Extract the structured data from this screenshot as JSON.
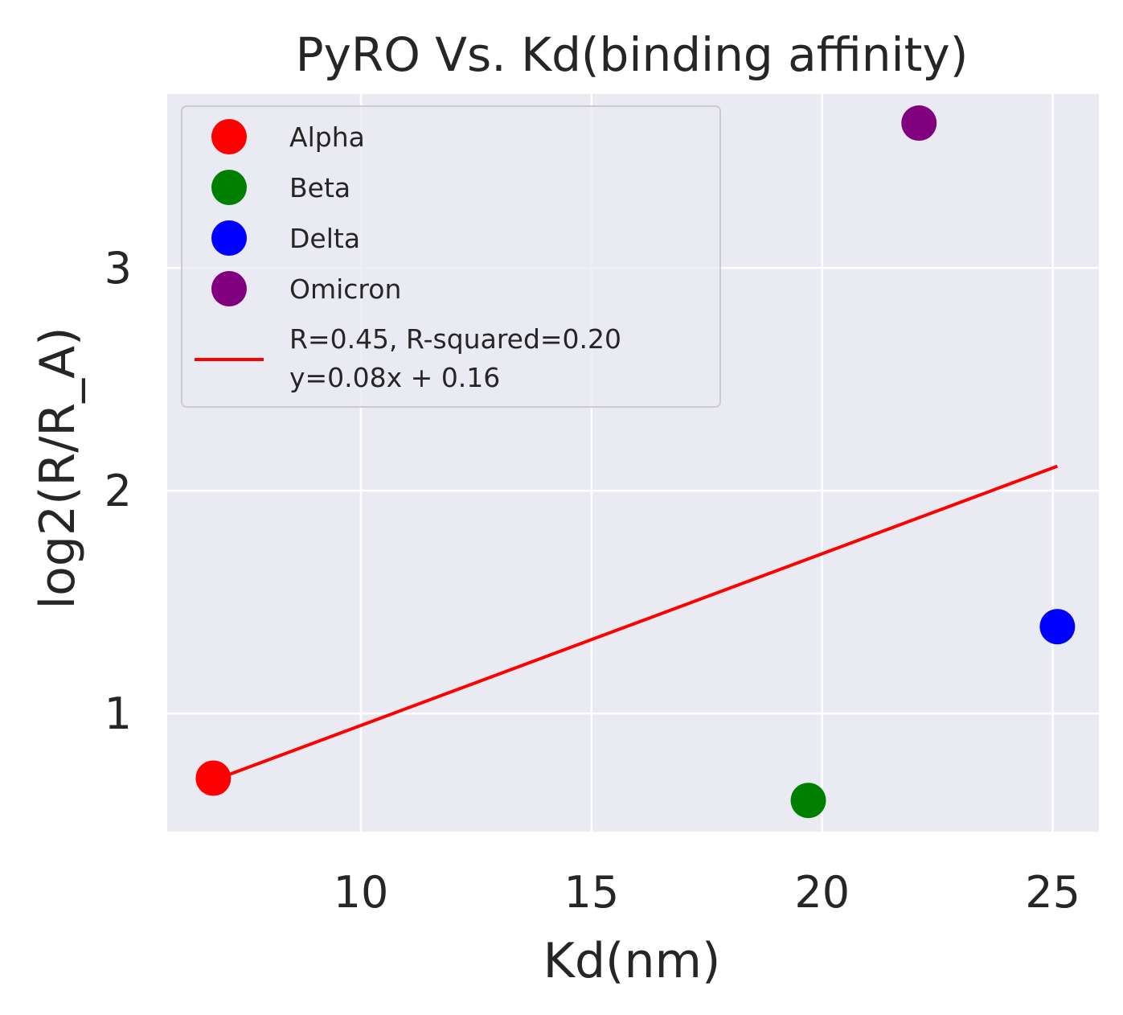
{
  "chart_data": {
    "type": "scatter",
    "title": "PyRO Vs. Kd(binding affinity)",
    "xlabel": "Kd(nm)",
    "ylabel": "log2(R/R_A)",
    "xlim": [
      5.8,
      26.0
    ],
    "ylim": [
      0.47,
      3.78
    ],
    "xticks": [
      10,
      15,
      20,
      25
    ],
    "yticks": [
      1,
      2,
      3
    ],
    "xtick_labels": [
      "10",
      "15",
      "20",
      "25"
    ],
    "ytick_labels": [
      "1",
      "2",
      "3"
    ],
    "grid": true,
    "background": "#eaeaf2",
    "legend_position": "top-left",
    "series": [
      {
        "name": "Alpha",
        "color": "#ff0000",
        "x": [
          6.8
        ],
        "y": [
          0.71
        ]
      },
      {
        "name": "Beta",
        "color": "#008000",
        "x": [
          19.7
        ],
        "y": [
          0.61
        ]
      },
      {
        "name": "Delta",
        "color": "#0000ff",
        "x": [
          25.1
        ],
        "y": [
          1.39
        ]
      },
      {
        "name": "Omicron",
        "color": "#800080",
        "x": [
          22.1
        ],
        "y": [
          3.65
        ]
      }
    ],
    "fit_line": {
      "color": "#ff0000",
      "label_lines": [
        "R=0.45, R-squared=0.20",
        "y=0.08x + 0.16"
      ],
      "x": [
        6.8,
        25.1
      ],
      "y": [
        0.7,
        2.11
      ]
    }
  }
}
